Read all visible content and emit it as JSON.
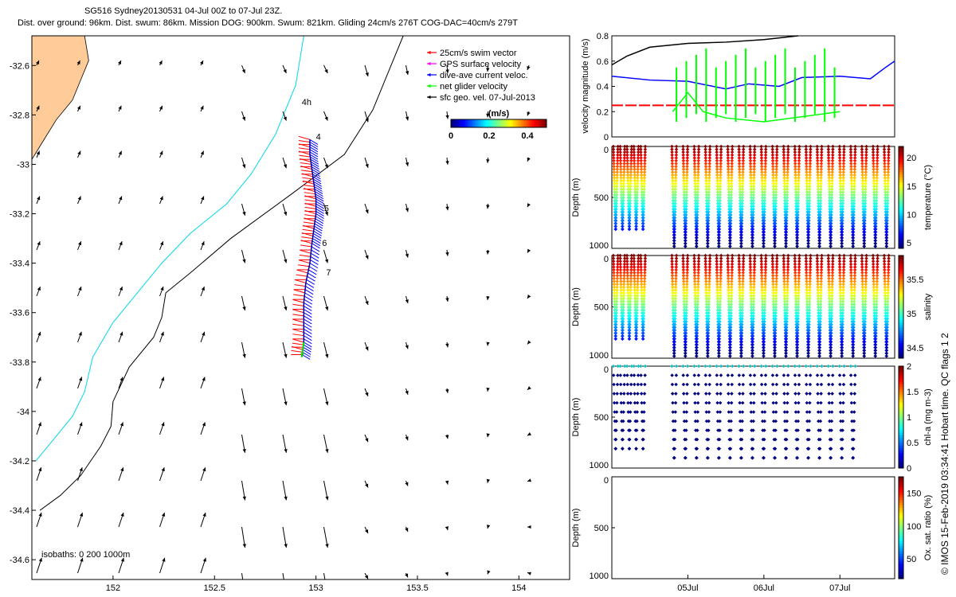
{
  "header": {
    "line1": "SG516 Sydney20130531 04-Jul 00Z to 07-Jul 23Z.",
    "line2": "Dist. over ground: 96km. Dist. swum: 86km. Mission DOG: 900km. Swum: 821km. Gliding 24cm/s 276T COG-DAC=40cm/s 279T"
  },
  "side_note": "© IMOS 15-Feb-2019 03:34:41 Hobart time. QC flags 1  2",
  "chart_data": [
    {
      "id": "map",
      "type": "scatter",
      "title": "",
      "xlabel": "",
      "ylabel": "",
      "xlim": [
        151.6,
        154.25
      ],
      "ylim": [
        -34.68,
        -32.48
      ],
      "xticks": [
        152,
        152.5,
        153,
        153.5,
        154
      ],
      "xtick_labels": [
        "152",
        "152.5",
        "153",
        "153.5",
        "154"
      ],
      "yticks": [
        -32.6,
        -32.8,
        -33,
        -33.2,
        -33.4,
        -33.6,
        -33.8,
        -34,
        -34.2,
        -34.4,
        -34.6
      ],
      "ytick_labels": [
        "-32.6",
        "-32.8",
        "-33",
        "-33.2",
        "-33.4",
        "-33.6",
        "-33.8",
        "-34",
        "-34.2",
        "-34.4",
        "-34.6"
      ],
      "legend": {
        "placement": "top-right",
        "entries": [
          {
            "label": "25cm/s swim vector",
            "color": "#ff0000"
          },
          {
            "label": "GPS surface velocity",
            "color": "#ff00ff"
          },
          {
            "label": "dive-ave current veloc.",
            "color": "#0000ff"
          },
          {
            "label": "net glider velocity",
            "color": "#00ff00"
          },
          {
            "label": "sfc geo. vel. 07-Jul-2013",
            "color": "#000000"
          }
        ]
      },
      "colorbar": {
        "label": "(m/s)",
        "ticks": [
          "0",
          "0.2",
          "0.4"
        ],
        "range": [
          0,
          0.5
        ]
      },
      "track_labels": [
        "4h",
        "4",
        "5",
        "6",
        "7"
      ],
      "track_label_positions": [
        {
          "label": "4h",
          "lon": 152.93,
          "lat": -32.76
        },
        {
          "label": "4",
          "lon": 153.0,
          "lat": -32.9
        },
        {
          "label": "5",
          "lon": 153.04,
          "lat": -33.19
        },
        {
          "label": "6",
          "lon": 153.03,
          "lat": -33.33
        },
        {
          "label": "7",
          "lon": 153.05,
          "lat": -33.45
        }
      ],
      "isobath_label": "isobaths: 0   200  1000m",
      "glider_track": {
        "lon": [
          152.97,
          152.97,
          152.98,
          152.99,
          153.0,
          153.0,
          152.99,
          152.98,
          152.97,
          152.95,
          152.94,
          152.94,
          152.94,
          152.93
        ],
        "lat": [
          -32.9,
          -32.96,
          -33.02,
          -33.08,
          -33.14,
          -33.2,
          -33.26,
          -33.32,
          -33.4,
          -33.48,
          -33.56,
          -33.64,
          -33.72,
          -33.78
        ]
      },
      "isobath_200m": {
        "lon": [
          153.43,
          153.36,
          153.28,
          153.14,
          152.88,
          152.58,
          152.38,
          152.26,
          152.24,
          152.2,
          152.08,
          152.0,
          151.99,
          151.94,
          151.84,
          151.74,
          151.64
        ],
        "lat": [
          -32.48,
          -32.62,
          -32.78,
          -32.96,
          -33.12,
          -33.3,
          -33.44,
          -33.52,
          -33.62,
          -33.7,
          -33.82,
          -33.96,
          -34.06,
          -34.14,
          -34.26,
          -34.34,
          -34.4
        ]
      },
      "isobath_1000m": {
        "lon": [
          152.94,
          152.9,
          152.8,
          152.68,
          152.56,
          152.38,
          152.24,
          152.14,
          152.0,
          151.9,
          151.86,
          151.8,
          151.7,
          151.62
        ],
        "lat": [
          -32.48,
          -32.68,
          -32.88,
          -33.04,
          -33.16,
          -33.28,
          -33.4,
          -33.5,
          -33.64,
          -33.78,
          -33.92,
          -34.02,
          -34.12,
          -34.2
        ]
      },
      "coastline": {
        "lon": [
          151.6,
          151.86,
          151.88,
          151.84,
          151.8,
          151.72,
          151.66,
          151.6
        ],
        "lat": [
          -32.48,
          -32.48,
          -32.58,
          -32.66,
          -32.74,
          -32.82,
          -32.9,
          -32.98
        ]
      }
    },
    {
      "id": "velocity",
      "type": "line",
      "title": "",
      "xlabel": "",
      "ylabel": "velocity magnitude (m/s)",
      "ylim": [
        0,
        0.8
      ],
      "yticks": [
        "0",
        "0.2",
        "0.4",
        "0.6",
        "0.8"
      ],
      "series": [
        {
          "color": "#000000",
          "x": [
            0,
            0.2,
            0.5,
            1.0,
            1.5,
            2.0,
            2.45
          ],
          "values": [
            0.57,
            0.64,
            0.71,
            0.74,
            0.75,
            0.77,
            0.8
          ]
        },
        {
          "color": "#0000ff",
          "x": [
            0,
            0.5,
            1.0,
            1.5,
            1.8,
            2.2,
            2.5,
            3.0,
            3.4,
            3.6,
            3.72
          ],
          "values": [
            0.48,
            0.45,
            0.44,
            0.38,
            0.42,
            0.4,
            0.47,
            0.48,
            0.46,
            0.55,
            0.6
          ]
        },
        {
          "color": "#ff0000",
          "x": [
            0,
            3.72
          ],
          "values": [
            0.25,
            0.25
          ]
        },
        {
          "color": "#00ff00",
          "x": [
            0.8,
            1.0,
            1.2,
            1.5,
            2.0,
            2.5,
            3.0
          ],
          "values": [
            0.2,
            0.35,
            0.2,
            0.15,
            0.12,
            0.16,
            0.2
          ]
        }
      ]
    },
    {
      "id": "temperature",
      "type": "scatter",
      "title": "",
      "xlabel": "",
      "ylabel": "Depth (m)",
      "ylim": [
        1000,
        0
      ],
      "yticks": [
        "0",
        "500",
        "1000"
      ],
      "colorbar": {
        "label": "temperature (°C)",
        "ticks": [
          "5",
          "10",
          "15",
          "20"
        ],
        "range": [
          4,
          22
        ]
      }
    },
    {
      "id": "salinity",
      "type": "scatter",
      "title": "",
      "xlabel": "",
      "ylabel": "Depth (m)",
      "ylim": [
        1000,
        0
      ],
      "yticks": [
        "0",
        "500",
        "1000"
      ],
      "colorbar": {
        "label": "salinity",
        "ticks": [
          "34.5",
          "35",
          "35.5"
        ],
        "range": [
          34.35,
          35.85
        ]
      }
    },
    {
      "id": "chla",
      "type": "scatter",
      "title": "",
      "xlabel": "",
      "ylabel": "Depth (m)",
      "ylim": [
        1000,
        0
      ],
      "yticks": [
        "0",
        "500",
        "1000"
      ],
      "colorbar": {
        "label": "chl-a (mg m-3)",
        "ticks": [
          "0",
          "0.5",
          "1",
          "1.5",
          "2"
        ],
        "range": [
          0,
          2
        ]
      }
    },
    {
      "id": "oxygen",
      "type": "scatter",
      "title": "",
      "xlabel": "",
      "ylabel": "Depth (m)",
      "ylim": [
        1000,
        0
      ],
      "yticks": [
        "0",
        "500",
        "1000"
      ],
      "xticks": [
        "05Jul",
        "06Jul",
        "07Jul"
      ],
      "colorbar": {
        "label": "Ox. sat. ratio (%)",
        "ticks": [
          "50",
          "100",
          "150"
        ],
        "range": [
          20,
          175
        ]
      }
    }
  ]
}
